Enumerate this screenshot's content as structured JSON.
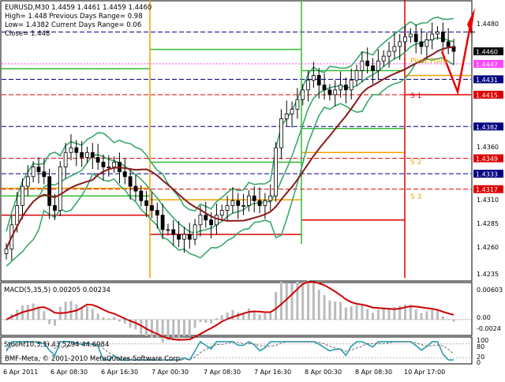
{
  "info": {
    "line1": "EURUSD,M30  1.4459 1.4461 1.4459 1.4460",
    "line2": "High= 1.448    Previous Days Range= 0.98",
    "line3": "Low= 1.4382    Current Days Range= 0.06",
    "line4": "Close= 1.448"
  },
  "colors": {
    "candle": "#000000",
    "bollinger": "#3aa86b",
    "ma": "#8b1a1a",
    "pivot_orange": "#f0a000",
    "support_red": "#dd0000",
    "resist_green": "#33bb33",
    "blue_dashed": "#000080",
    "macd_hist": "#bbbbbb",
    "macd_signal": "#cc0000",
    "stoch_main": "#2a9db0",
    "stoch_signal": "#6a6a6a"
  },
  "chart_data": [
    {
      "type": "candlestick",
      "symbol": "EURUSD",
      "timeframe": "M30",
      "ylim": [
        1.4225,
        1.451
      ],
      "right_ticks": [
        "1.4480",
        "1.4460",
        "1.4447",
        "1.4431",
        "1.4415",
        "1.4382",
        "1.4360",
        "1.4349",
        "1.4333",
        "1.4317",
        "1.4310",
        "1.4285",
        "1.4260",
        "1.4235"
      ],
      "price_tags": [
        {
          "label": "1.4460",
          "value": 1.446,
          "bg": "#000000"
        },
        {
          "label": "1.4447",
          "value": 1.4447,
          "bg": "#ff44ff"
        },
        {
          "label": "1.4431",
          "value": 1.4431,
          "bg": "#000080"
        },
        {
          "label": "1.4415",
          "value": 1.4415,
          "bg": "#dd0000"
        },
        {
          "label": "1.4382",
          "value": 1.4382,
          "bg": "#000080"
        },
        {
          "label": "1.4349",
          "value": 1.4349,
          "bg": "#dd0000"
        },
        {
          "label": "1.4333",
          "value": 1.4333,
          "bg": "#000080"
        },
        {
          "label": "1.4317",
          "value": 1.4317,
          "bg": "#dd0000"
        }
      ],
      "levels": [
        {
          "value": 1.448,
          "label": "1.4480"
        },
        {
          "value": 1.4431,
          "label": "1.4431"
        },
        {
          "value": 1.4382,
          "label": "1.4382"
        },
        {
          "value": 1.4333,
          "label": "1.4333"
        }
      ],
      "annotations": [
        "Pivot Point",
        "S 1",
        "S 2",
        "S 3"
      ],
      "x_ticks": [
        "6 Apr 2011",
        "6 Apr 08:30",
        "6 Apr 16:30",
        "7 Apr 00:30",
        "7 Apr 08:30",
        "7 Apr 16:30",
        "8 Apr 00:30",
        "8 Apr 08:30",
        "10 Apr 17:00"
      ],
      "close_path": [
        1.4255,
        1.428,
        1.43,
        1.432,
        1.433,
        1.434,
        1.4335,
        1.433,
        1.43,
        1.4295,
        1.434,
        1.4355,
        1.436,
        1.4355,
        1.435,
        1.4355,
        1.435,
        1.4345,
        1.434,
        1.434,
        1.4345,
        1.4335,
        1.433,
        1.432,
        1.4315,
        1.4305,
        1.43,
        1.4295,
        1.429,
        1.4275,
        1.4275,
        1.427,
        1.4265,
        1.427,
        1.4265,
        1.428,
        1.429,
        1.4285,
        1.428,
        1.429,
        1.4295,
        1.43,
        1.4305,
        1.43,
        1.43,
        1.431,
        1.4305,
        1.43,
        1.4305,
        1.431,
        1.436,
        1.439,
        1.4395,
        1.44,
        1.441,
        1.442,
        1.443,
        1.4435,
        1.4425,
        1.442,
        1.4415,
        1.442,
        1.4425,
        1.442,
        1.443,
        1.444,
        1.445,
        1.4445,
        1.444,
        1.445,
        1.4455,
        1.446,
        1.4465,
        1.447,
        1.4475,
        1.4478,
        1.447,
        1.4465,
        1.4472,
        1.4478,
        1.448,
        1.447,
        1.4465,
        1.446
      ]
    },
    {
      "type": "macd",
      "title": "MACD(5,35,5) 0.00205 0.00234",
      "ylim": [
        -0.0024,
        0.00603
      ],
      "ticks": [
        "0.00603",
        "0.00",
        "-0.0024"
      ]
    },
    {
      "type": "stochastic",
      "title": "Stoch(10,3,3) 43.5294 44.6984",
      "ticks": [
        "100",
        "80",
        "20",
        "0"
      ]
    }
  ],
  "copyright": "BMF-Meta, © 2001-2010 MetaQuotes Software Corp."
}
